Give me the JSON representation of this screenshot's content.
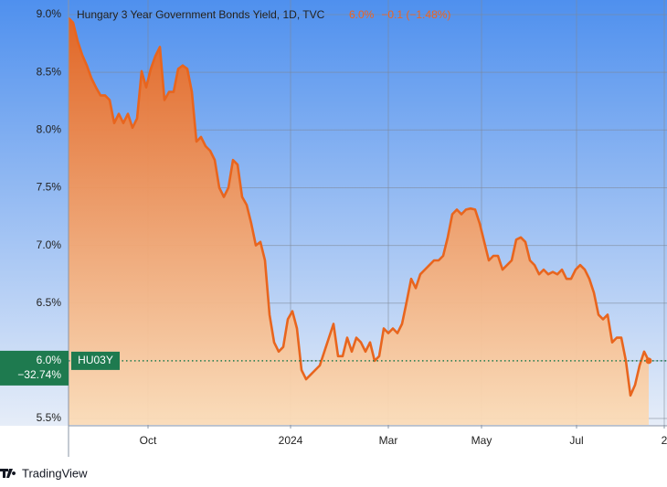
{
  "chart_data": {
    "type": "line",
    "title": "Hungary 3 Year Government Bonds Yield, 1D, TVC",
    "header_value": "6.0%",
    "header_change": "−0.1 (−1.48%)",
    "ticker": "HU03Y",
    "last_value_label": "6.0%",
    "last_change_label": "−32.74%",
    "color": "#e8651e",
    "values": [
      8.97,
      8.93,
      8.77,
      8.65,
      8.56,
      8.45,
      8.37,
      8.3,
      8.3,
      8.26,
      8.06,
      8.14,
      8.06,
      8.14,
      8.02,
      8.1,
      8.51,
      8.37,
      8.53,
      8.64,
      8.72,
      8.26,
      8.33,
      8.33,
      8.53,
      8.56,
      8.53,
      8.33,
      7.9,
      7.94,
      7.86,
      7.82,
      7.74,
      7.5,
      7.42,
      7.5,
      7.74,
      7.7,
      7.42,
      7.35,
      7.19,
      7.0,
      7.03,
      6.87,
      6.4,
      6.16,
      6.08,
      6.12,
      6.36,
      6.43,
      6.28,
      5.92,
      5.84,
      5.88,
      5.92,
      5.96,
      6.08,
      6.2,
      6.32,
      6.04,
      6.04,
      6.2,
      6.08,
      6.2,
      6.16,
      6.08,
      6.16,
      6.0,
      6.04,
      6.28,
      6.24,
      6.28,
      6.24,
      6.32,
      6.51,
      6.71,
      6.63,
      6.75,
      6.79,
      6.83,
      6.87,
      6.87,
      6.91,
      7.07,
      7.27,
      7.31,
      7.27,
      7.31,
      7.32,
      7.31,
      7.19,
      7.03,
      6.87,
      6.91,
      6.91,
      6.79,
      6.83,
      6.87,
      7.05,
      7.07,
      7.03,
      6.87,
      6.83,
      6.75,
      6.79,
      6.75,
      6.77,
      6.75,
      6.79,
      6.71,
      6.71,
      6.79,
      6.83,
      6.79,
      6.71,
      6.59,
      6.4,
      6.36,
      6.4,
      6.16,
      6.2,
      6.2,
      6.0,
      5.7,
      5.79,
      5.96,
      6.08,
      6.0
    ],
    "xlim": [
      0,
      131
    ],
    "xticks": [
      {
        "value": 17.4,
        "label": "Oct"
      },
      {
        "value": 48.6,
        "label": "2024"
      },
      {
        "value": 70,
        "label": "Mar"
      },
      {
        "value": 90.4,
        "label": "May"
      },
      {
        "value": 111.2,
        "label": "Jul"
      },
      {
        "value": 130.4,
        "label": "2"
      }
    ],
    "ylim": [
      5.445,
      9.087
    ],
    "yticks": [
      {
        "value": 5.5,
        "label": "5.5%"
      },
      {
        "value": 6.0,
        "label": "6.0%"
      },
      {
        "value": 6.5,
        "label": "6.5%"
      },
      {
        "value": 7.0,
        "label": "7.0%"
      },
      {
        "value": 7.5,
        "label": "7.5%"
      },
      {
        "value": 8.0,
        "label": "8.0%"
      },
      {
        "value": 8.5,
        "label": "8.5%"
      },
      {
        "value": 9.0,
        "label": "9.0%"
      }
    ],
    "grid": true
  },
  "footer": {
    "brand": "TradingView"
  }
}
